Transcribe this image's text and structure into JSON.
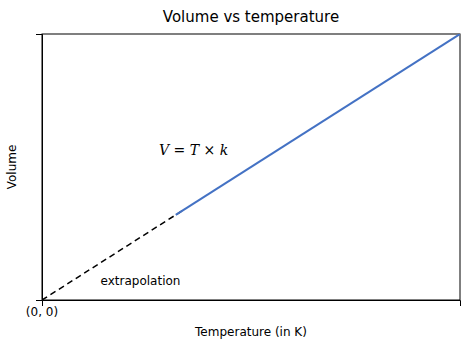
{
  "chart_data": {
    "type": "line",
    "title": "Volume vs temperature",
    "x_label": "Temperature (in K)",
    "y_label": "Volume",
    "xlim": [
      0,
      1.0
    ],
    "ylim": [
      0,
      1.0
    ],
    "xticks": [],
    "yticks": [],
    "tick_labels": false,
    "series": [
      {
        "x": [
          0.0,
          0.34
        ],
        "values": [
          0.0,
          0.34
        ],
        "color": "#000000",
        "line_style": "dashed"
      },
      {
        "x": [
          0.32,
          1.0
        ],
        "values": [
          0.32,
          1.0
        ],
        "color": "#4472C4",
        "line_style": "solid"
      }
    ],
    "annotations": [
      "V = T × k",
      "extrapolation",
      "(0, 0)"
    ]
  }
}
